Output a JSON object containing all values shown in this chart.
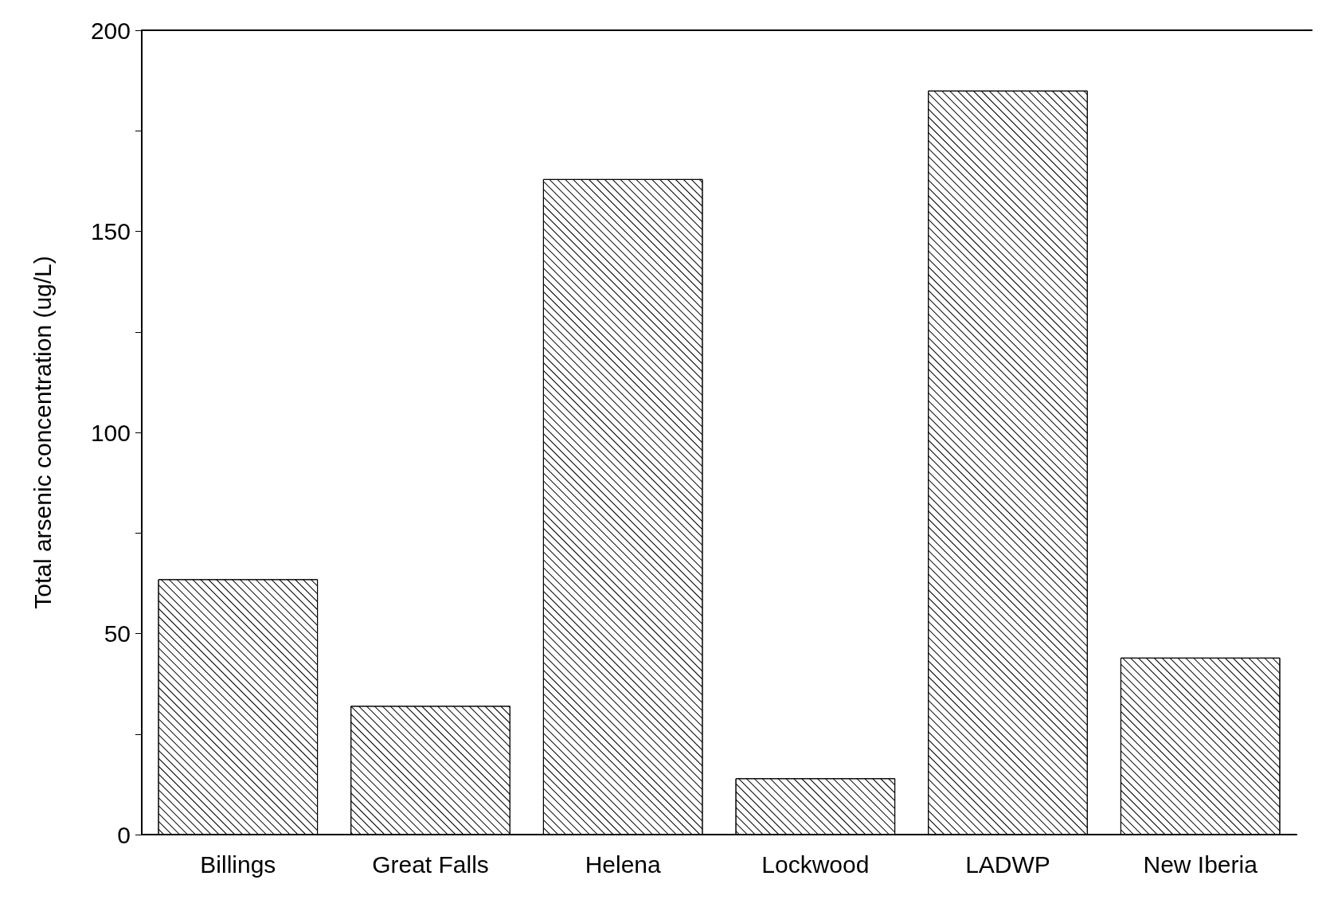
{
  "chart_data": {
    "type": "bar",
    "ylabel": "Total arsenic concentration (ug/L)",
    "categories": [
      "Billings",
      "Great Falls",
      "Helena",
      "Lockwood",
      "LADWP",
      "New Iberia"
    ],
    "values": [
      63.5,
      32,
      163,
      14,
      185,
      44
    ],
    "color": "#000000",
    "ylim": [
      0,
      200
    ],
    "yticks": [
      0,
      {
        "value": 25,
        "label": null
      },
      50,
      {
        "value": 75,
        "label": null
      },
      100,
      {
        "value": 125,
        "label": null
      },
      150,
      {
        "value": 175,
        "label": null
      },
      200
    ],
    "grid": false
  }
}
